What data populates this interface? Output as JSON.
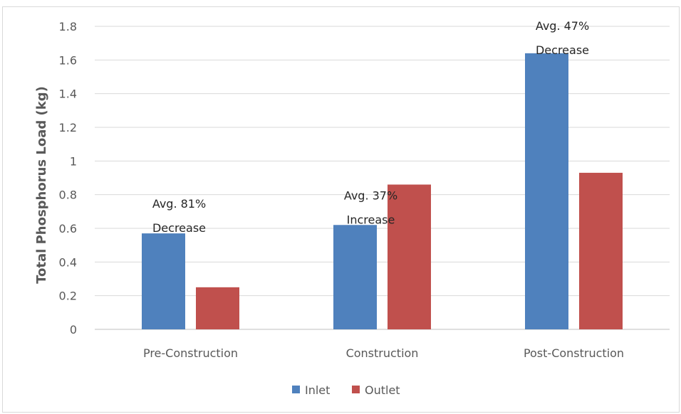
{
  "chart_data": {
    "type": "bar",
    "categories": [
      "Pre-Construction",
      "Construction",
      "Post-Construction"
    ],
    "series": [
      {
        "name": "Inlet",
        "values": [
          0.57,
          0.62,
          1.64
        ],
        "color": "#4f81bd"
      },
      {
        "name": "Outlet",
        "values": [
          0.25,
          0.86,
          0.93
        ],
        "color": "#c0504d"
      }
    ],
    "ylabel": "Total Phosphorus Load (kg)",
    "xlabel": "",
    "ylim": [
      0,
      1.8
    ],
    "yticks": [
      "0",
      "0.2",
      "0.4",
      "0.6",
      "0.8",
      "1",
      "1.2",
      "1.4",
      "1.6",
      "1.8"
    ],
    "grid": true,
    "legend_position": "bottom",
    "annotations": [
      {
        "category": "Pre-Construction",
        "lines": [
          "Avg. 81%",
          "Decrease"
        ]
      },
      {
        "category": "Construction",
        "lines": [
          "Avg. 37%",
          "Increase"
        ]
      },
      {
        "category": "Post-Construction",
        "lines": [
          "Avg. 47%",
          "Decrease"
        ]
      }
    ]
  }
}
